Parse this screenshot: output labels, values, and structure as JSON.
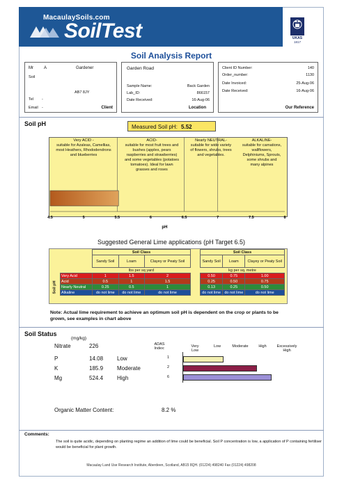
{
  "header": {
    "brand_small": "MacaulaySoils.com",
    "brand_big": "SoilTest",
    "badge_text": "UKAS",
    "badge_number": "1817",
    "report_title": "Soil Analysis Report"
  },
  "client_box": {
    "name_title": "Mr",
    "name_initial": "A",
    "name_surname": "Gardener",
    "line2": "Soil",
    "postcode": "AB7 8JY",
    "tel_label": "Tel",
    "tel_value": "-",
    "email_label": "Email",
    "email_value": "-",
    "footer": "Client"
  },
  "location_box": {
    "address": "Garden Road",
    "sample_name_label": "Sample Name:",
    "sample_name_value": "Back Garden",
    "lab_id_label": "Lab_ID:",
    "lab_id_value": "866157",
    "date_received_label": "Date Received:",
    "date_received_value": "16-Aug-06",
    "footer": "Location"
  },
  "reference_box": {
    "rows": [
      {
        "label": "Client ID Number:",
        "value": "140"
      },
      {
        "label": "Order_number:",
        "value": "1130"
      },
      {
        "label": "Date Invoiced:",
        "value": "25-Aug-06"
      },
      {
        "label": "Date Received:",
        "value": "16-Aug-06"
      }
    ],
    "footer": "Our Reference"
  },
  "soil_ph": {
    "title": "Soil pH",
    "measured_label": "Measured Soil pH:",
    "measured_value": "5.52",
    "measured_numeric": 5.52,
    "descriptions": [
      "Very ACID -\nsuitable for Azaleas, Camellias,\nmost Heathers, Rhododendrons\nand blueberries",
      "ACID-\nsuitable for most fruit trees and\nbushes (apples, pears\nraspberries and strawberries)\nand some vegetables (potatoes\ntomatoes). Ideal for lawn\ngrasses and roses",
      "Nearly NEUTRAL-\nsuitable for wide variety\nof flowers, shrubs, trees\nand vegetables.",
      "ALKALINE-\nsuitable for carnations,\nwallflowers,\nDelphiniums, Sprouts,\nsome shrubs and\nmany alpines"
    ],
    "scale_min": 4.5,
    "scale_max": 8,
    "ticks": [
      "4.5",
      "5",
      "5.5",
      "6",
      "6.5",
      "7",
      "7.5",
      "8"
    ],
    "axis_label": "pH"
  },
  "lime": {
    "title": "Suggested General Lime applications (pH Target 6.5)",
    "soil_class_label": "Soil Class",
    "side_label": "Soil pH",
    "columns": [
      "Sandy Soil",
      "Loam",
      "Clayey or Peaty Soil"
    ],
    "unit_left": "lbs per sq yard",
    "unit_right": "kg per sq. metre",
    "rows": [
      {
        "label": "Very Acid",
        "left": [
          "1",
          "1.5",
          "2"
        ],
        "right": [
          "0.50",
          "0.75",
          "1.00"
        ],
        "color": "#d81e1e"
      },
      {
        "label": "Acid",
        "left": [
          "0.5",
          "1",
          "1.5"
        ],
        "right": [
          "0.25",
          "0.50",
          "0.75"
        ],
        "color": "#b33a1a"
      },
      {
        "label": "Nearly Neutral",
        "left": [
          "0.25",
          "0.5",
          "1"
        ],
        "right": [
          "0.13",
          "0.25",
          "0.50"
        ],
        "color": "#2e8b3a"
      },
      {
        "label": "Alkaline",
        "left": [
          "do not lime",
          "do not lime",
          "do not lime"
        ],
        "right": [
          "do not lime",
          "do not lime",
          "do not lime"
        ],
        "color": "#1d4f9a"
      }
    ],
    "note": "Note: Actual lime requirement to achieve an optimum soil pH is dependent on the crop or plants to be grown, see examples in chart above"
  },
  "soil_status": {
    "title": "Soil Status",
    "units": "(mg/kg)",
    "adas_label": "ADAS Index:",
    "levels": [
      "Very Low",
      "Low",
      "Moderate",
      "High",
      "Excessively High"
    ],
    "nutrients": [
      {
        "name": "Nitrate",
        "value": "226",
        "status": "",
        "index": ""
      },
      {
        "name": "P",
        "value": "14.08",
        "status": "Low",
        "index": "1",
        "fill": 0.33,
        "color": "#f2efb0"
      },
      {
        "name": "K",
        "value": "185.9",
        "status": "Moderate",
        "index": "2",
        "fill": 0.6,
        "color": "#8b1e46"
      },
      {
        "name": "Mg",
        "value": "524.4",
        "status": "High",
        "index": "6",
        "fill": 0.72,
        "color": "#9b8fd6"
      }
    ],
    "organic_label": "Organic Matter Content:",
    "organic_value": "8.2 %"
  },
  "comments": {
    "title": "Comments:",
    "text": "The soil is quite acidic, depending on planting regime an addition of lime could be beneficial. Soil P concentration is low, a application of P containing fertiliser would be beneficial for plant growth."
  },
  "footer": {
    "address": "Macaulay Land Use Research Institute, Aberdeen, Scotland, AB15 8QH. (01224) 498240 Fax (01224) 498208"
  },
  "colors": {
    "brand": "#1e5796",
    "ph_yellow": "#fbf29a",
    "measured_box": "#fbe564"
  }
}
